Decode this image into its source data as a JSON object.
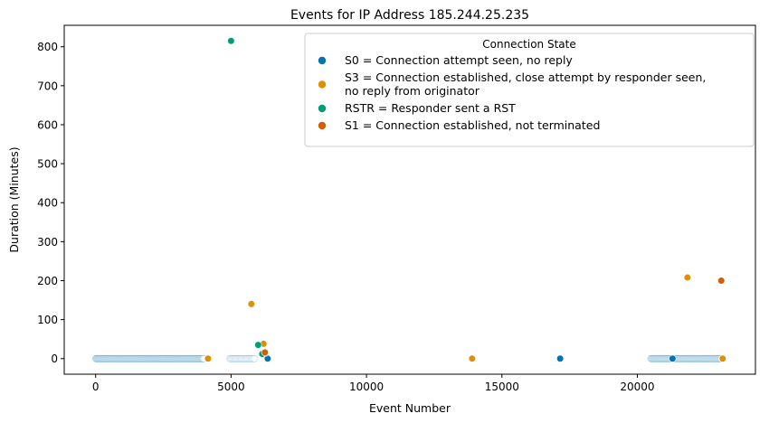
{
  "chart_data": {
    "type": "scatter",
    "title": "Events for IP Address 185.244.25.235",
    "xlabel": "Event Number",
    "ylabel": "Duration (Minutes)",
    "xlim": [
      -1160,
      24360
    ],
    "ylim": [
      -40,
      855
    ],
    "xticks": [
      0,
      5000,
      10000,
      15000,
      20000
    ],
    "yticks": [
      0,
      100,
      200,
      300,
      400,
      500,
      600,
      700,
      800
    ],
    "grid": false,
    "legend": {
      "title": "Connection State",
      "placement": "top-right",
      "entries": [
        {
          "label_lines": [
            "S0 = Connection attempt seen, no reply"
          ],
          "color": "#0173b2"
        },
        {
          "label_lines": [
            "S3 = Connection established, close attempt by responder seen,",
            "        no reply from originator"
          ],
          "color": "#de8f05"
        },
        {
          "label_lines": [
            "RSTR = Responder sent a RST"
          ],
          "color": "#029e73"
        },
        {
          "label_lines": [
            "S1 = Connection established, not terminated"
          ],
          "color": "#d55e00"
        }
      ]
    },
    "dense_bands": [
      {
        "x_start": 0,
        "x_end": 4000,
        "y": 0,
        "series": 0,
        "step": 18
      },
      {
        "x_start": 4950,
        "x_end": 5900,
        "y": 0,
        "series": 0,
        "step": 40
      },
      {
        "x_start": 20500,
        "x_end": 23100,
        "y": 0,
        "series": 0,
        "step": 20
      }
    ],
    "series": [
      {
        "color": "#0173b2",
        "points": [
          [
            6350,
            0
          ],
          [
            17150,
            0
          ],
          [
            21300,
            0
          ]
        ]
      },
      {
        "color": "#de8f05",
        "points": [
          [
            4150,
            0
          ],
          [
            5750,
            140
          ],
          [
            6200,
            38
          ],
          [
            6250,
            14
          ],
          [
            13900,
            0
          ],
          [
            21850,
            208
          ],
          [
            23150,
            0
          ]
        ]
      },
      {
        "color": "#029e73",
        "points": [
          [
            5000,
            815
          ],
          [
            6000,
            35
          ],
          [
            6150,
            12
          ]
        ]
      },
      {
        "color": "#d55e00",
        "points": [
          [
            6250,
            16
          ],
          [
            23100,
            200
          ]
        ]
      }
    ]
  }
}
